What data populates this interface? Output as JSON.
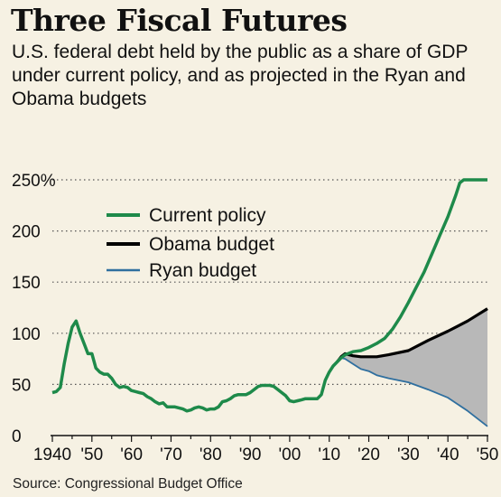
{
  "header": {
    "title": "Three Fiscal Futures",
    "subtitle": "U.S. federal debt held by the public as a share of GDP under current policy, and as projected in the Ryan and Obama budgets"
  },
  "footer": {
    "source": "Source: Congressional Budget Office"
  },
  "colors": {
    "current": "#1e8a4a",
    "obama": "#000000",
    "ryan": "#2f6f9f",
    "fill": "#b8b8b8"
  },
  "chart_data": {
    "type": "line",
    "xlim": [
      1940,
      2050
    ],
    "ylim": [
      0,
      250
    ],
    "grid": "dotted horizontal",
    "legend": "top-left",
    "x_tick_labels": [
      "1940",
      "'50",
      "'60",
      "'70",
      "'80",
      "'90",
      "'00",
      "'10",
      "'20",
      "'30",
      "'40",
      "'50"
    ],
    "x_tick_values": [
      1940,
      1950,
      1960,
      1970,
      1980,
      1990,
      2000,
      2010,
      2020,
      2030,
      2040,
      2050
    ],
    "y_tick_labels": [
      "0",
      "50",
      "100",
      "150",
      "200",
      "250%"
    ],
    "y_tick_values": [
      0,
      50,
      100,
      150,
      200,
      250
    ],
    "shaded_region": "between Obama budget and Ryan budget, 2013-2050",
    "series": [
      {
        "name": "Current policy",
        "points": [
          [
            1940,
            42
          ],
          [
            1941,
            43
          ],
          [
            1942,
            47
          ],
          [
            1943,
            70
          ],
          [
            1944,
            90
          ],
          [
            1945,
            106
          ],
          [
            1946,
            112
          ],
          [
            1947,
            100
          ],
          [
            1948,
            90
          ],
          [
            1949,
            80
          ],
          [
            1950,
            80
          ],
          [
            1951,
            66
          ],
          [
            1952,
            62
          ],
          [
            1953,
            60
          ],
          [
            1954,
            60
          ],
          [
            1955,
            56
          ],
          [
            1956,
            50
          ],
          [
            1957,
            47
          ],
          [
            1958,
            48
          ],
          [
            1959,
            47
          ],
          [
            1960,
            44
          ],
          [
            1961,
            43
          ],
          [
            1962,
            42
          ],
          [
            1963,
            41
          ],
          [
            1964,
            38
          ],
          [
            1965,
            36
          ],
          [
            1966,
            33
          ],
          [
            1967,
            31
          ],
          [
            1968,
            32
          ],
          [
            1969,
            28
          ],
          [
            1970,
            28
          ],
          [
            1971,
            28
          ],
          [
            1972,
            27
          ],
          [
            1973,
            26
          ],
          [
            1974,
            24
          ],
          [
            1975,
            25
          ],
          [
            1976,
            27
          ],
          [
            1977,
            28
          ],
          [
            1978,
            27
          ],
          [
            1979,
            25
          ],
          [
            1980,
            26
          ],
          [
            1981,
            26
          ],
          [
            1982,
            28
          ],
          [
            1983,
            33
          ],
          [
            1984,
            34
          ],
          [
            1985,
            36
          ],
          [
            1986,
            39
          ],
          [
            1987,
            40
          ],
          [
            1988,
            40
          ],
          [
            1989,
            40
          ],
          [
            1990,
            42
          ],
          [
            1991,
            45
          ],
          [
            1992,
            48
          ],
          [
            1993,
            49
          ],
          [
            1994,
            49
          ],
          [
            1995,
            49
          ],
          [
            1996,
            48
          ],
          [
            1997,
            45
          ],
          [
            1998,
            42
          ],
          [
            1999,
            39
          ],
          [
            2000,
            34
          ],
          [
            2001,
            33
          ],
          [
            2002,
            34
          ],
          [
            2003,
            35
          ],
          [
            2004,
            36
          ],
          [
            2005,
            36
          ],
          [
            2006,
            36
          ],
          [
            2007,
            36
          ],
          [
            2008,
            40
          ],
          [
            2009,
            54
          ],
          [
            2010,
            62
          ],
          [
            2011,
            68
          ],
          [
            2012,
            72
          ],
          [
            2013,
            76
          ],
          [
            2014,
            79
          ],
          [
            2016,
            82
          ],
          [
            2018,
            83
          ],
          [
            2020,
            86
          ],
          [
            2022,
            90
          ],
          [
            2024,
            95
          ],
          [
            2026,
            104
          ],
          [
            2028,
            116
          ],
          [
            2030,
            130
          ],
          [
            2032,
            145
          ],
          [
            2034,
            160
          ],
          [
            2036,
            178
          ],
          [
            2038,
            196
          ],
          [
            2040,
            214
          ],
          [
            2042,
            235
          ],
          [
            2043,
            247
          ],
          [
            2044,
            250
          ],
          [
            2050,
            250
          ]
        ]
      },
      {
        "name": "Obama budget",
        "points": [
          [
            2012,
            72
          ],
          [
            2013,
            77
          ],
          [
            2014,
            80
          ],
          [
            2016,
            78
          ],
          [
            2018,
            77
          ],
          [
            2020,
            77
          ],
          [
            2022,
            77
          ],
          [
            2025,
            79
          ],
          [
            2030,
            83
          ],
          [
            2035,
            93
          ],
          [
            2040,
            102
          ],
          [
            2045,
            112
          ],
          [
            2050,
            124
          ]
        ]
      },
      {
        "name": "Ryan budget",
        "points": [
          [
            2012,
            72
          ],
          [
            2013,
            76
          ],
          [
            2014,
            75
          ],
          [
            2016,
            70
          ],
          [
            2018,
            65
          ],
          [
            2020,
            63
          ],
          [
            2022,
            59
          ],
          [
            2025,
            56
          ],
          [
            2030,
            52
          ],
          [
            2035,
            45
          ],
          [
            2040,
            37
          ],
          [
            2045,
            24
          ],
          [
            2050,
            9
          ]
        ]
      }
    ]
  }
}
